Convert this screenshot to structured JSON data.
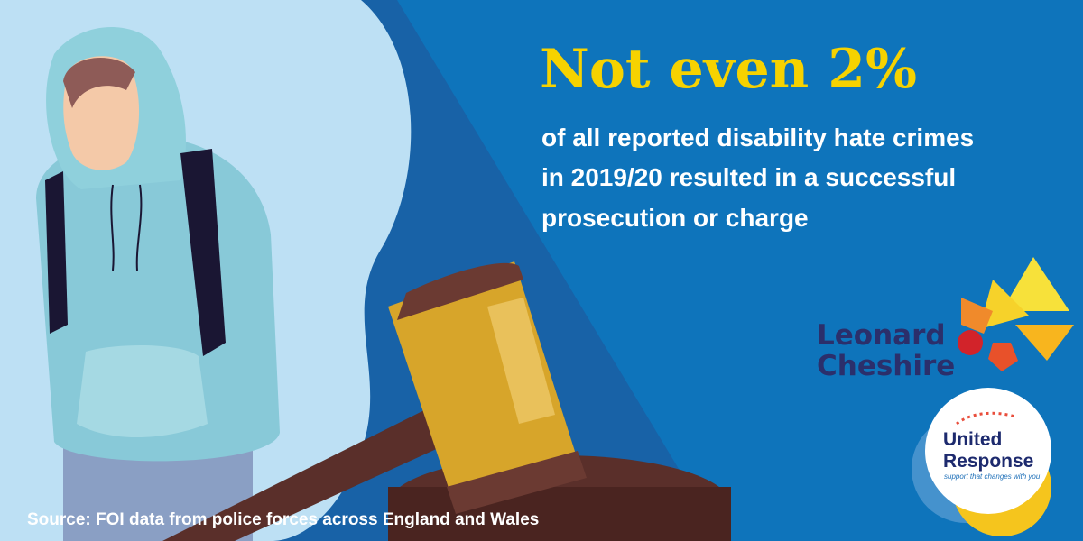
{
  "headline": "Not even 2%",
  "body": {
    "lines": [
      "of all reported disability hate crimes",
      "in 2019/20 resulted in a successful",
      "prosecution or charge"
    ]
  },
  "source": "Source: FOI data from police forces across England and Wales",
  "logos": {
    "leonard_cheshire": {
      "lines": [
        "Leonard",
        "Cheshire"
      ]
    },
    "united_response": {
      "lines": [
        "United",
        "Response"
      ],
      "tagline": "support that changes with you"
    }
  }
}
